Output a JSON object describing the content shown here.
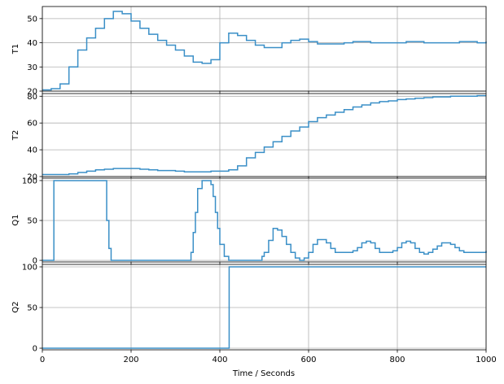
{
  "chart_data": {
    "type": "line",
    "xlabel": "Time / Seconds",
    "xlim": [
      0,
      1000
    ],
    "xticks": [
      0,
      200,
      400,
      600,
      800,
      1000
    ],
    "grid": true,
    "line_color": "#3a8fc7",
    "panels": [
      {
        "name": "T1",
        "ylabel": "T1",
        "ylim": [
          20,
          55
        ],
        "yticks": [
          20,
          30,
          40,
          50
        ],
        "x": [
          0,
          20,
          40,
          60,
          80,
          100,
          120,
          140,
          160,
          180,
          200,
          220,
          240,
          260,
          280,
          300,
          320,
          340,
          360,
          380,
          400,
          420,
          440,
          460,
          480,
          500,
          520,
          540,
          560,
          580,
          600,
          620,
          640,
          660,
          680,
          700,
          720,
          740,
          760,
          780,
          800,
          820,
          840,
          860,
          880,
          900,
          920,
          940,
          960,
          980,
          1000
        ],
        "values": [
          20.5,
          21,
          23,
          30,
          37,
          42,
          46,
          50,
          53,
          52,
          49,
          46,
          43.5,
          41,
          39,
          37,
          34.5,
          32,
          31.5,
          33,
          40,
          44,
          43,
          41,
          39,
          38,
          38,
          40,
          41,
          41.5,
          40.5,
          39.5,
          39.5,
          39.5,
          40,
          40.5,
          40.5,
          40,
          40,
          40,
          40,
          40.5,
          40.5,
          40,
          40,
          40,
          40,
          40.5,
          40.5,
          40,
          40.5
        ]
      },
      {
        "name": "T2",
        "ylabel": "T2",
        "ylim": [
          20,
          82
        ],
        "yticks": [
          20,
          40,
          60,
          80
        ],
        "x": [
          0,
          20,
          40,
          60,
          80,
          100,
          120,
          140,
          160,
          180,
          200,
          220,
          240,
          260,
          280,
          300,
          320,
          340,
          360,
          380,
          400,
          420,
          440,
          460,
          480,
          500,
          520,
          540,
          560,
          580,
          600,
          620,
          640,
          660,
          680,
          700,
          720,
          740,
          760,
          780,
          800,
          820,
          840,
          860,
          880,
          900,
          920,
          940,
          960,
          980,
          1000
        ],
        "values": [
          21.5,
          21.5,
          21.5,
          22,
          23,
          24,
          25,
          25.5,
          26,
          26,
          26,
          25.5,
          25,
          24.5,
          24.5,
          24,
          23.5,
          23.5,
          23.5,
          24,
          24,
          25,
          28,
          34,
          38,
          42,
          46,
          50,
          54,
          57,
          61,
          64,
          66,
          68,
          70,
          72,
          73.5,
          75,
          76,
          76.5,
          77.5,
          78,
          78.5,
          79,
          79.5,
          79.5,
          80,
          80,
          80,
          80.5,
          80.5
        ]
      },
      {
        "name": "Q1",
        "ylabel": "Q1",
        "ylim": [
          -2,
          103
        ],
        "yticks": [
          0,
          50,
          100
        ],
        "x": [
          0,
          25,
          26,
          140,
          145,
          150,
          155,
          330,
          335,
          340,
          345,
          350,
          360,
          370,
          380,
          385,
          390,
          395,
          400,
          410,
          420,
          430,
          440,
          450,
          460,
          470,
          480,
          490,
          495,
          500,
          510,
          520,
          530,
          540,
          550,
          560,
          570,
          580,
          590,
          600,
          610,
          620,
          630,
          640,
          650,
          660,
          670,
          680,
          690,
          700,
          710,
          720,
          730,
          740,
          750,
          760,
          770,
          780,
          790,
          800,
          810,
          820,
          830,
          840,
          850,
          860,
          870,
          880,
          890,
          900,
          910,
          920,
          930,
          940,
          950,
          960,
          970,
          980,
          990,
          1000
        ],
        "values": [
          0,
          0,
          100,
          100,
          50,
          15,
          0,
          0,
          10,
          35,
          60,
          90,
          100,
          100,
          95,
          80,
          60,
          40,
          20,
          5,
          0,
          0,
          0,
          0,
          0,
          0,
          0,
          0,
          5,
          10,
          25,
          40,
          38,
          30,
          20,
          10,
          3,
          0,
          3,
          10,
          20,
          26,
          26,
          22,
          15,
          10,
          10,
          10,
          10,
          12,
          16,
          22,
          24,
          22,
          15,
          10,
          10,
          10,
          12,
          16,
          22,
          24,
          22,
          15,
          10,
          8,
          10,
          14,
          18,
          22,
          22,
          20,
          16,
          12,
          10,
          10,
          10,
          10,
          10,
          12
        ]
      },
      {
        "name": "Q2",
        "ylabel": "Q2",
        "ylim": [
          -2,
          103
        ],
        "yticks": [
          0,
          50,
          100
        ],
        "x": [
          0,
          420,
          421,
          1000
        ],
        "values": [
          0,
          0,
          100,
          100
        ]
      }
    ]
  }
}
